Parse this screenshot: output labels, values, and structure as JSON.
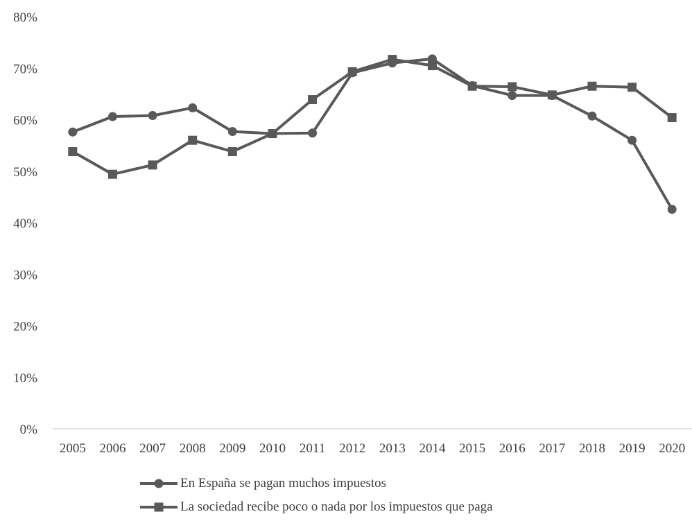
{
  "chart_data": {
    "type": "line",
    "title": "",
    "xlabel": "",
    "ylabel": "",
    "categories": [
      "2005",
      "2006",
      "2007",
      "2008",
      "2009",
      "2010",
      "2011",
      "2012",
      "2013",
      "2014",
      "2015",
      "2016",
      "2017",
      "2018",
      "2019",
      "2020"
    ],
    "y_ticks": [
      "0%",
      "10%",
      "20%",
      "30%",
      "40%",
      "50%",
      "60%",
      "70%",
      "80%"
    ],
    "ylim": [
      0,
      80
    ],
    "grid": false,
    "legend_position": "bottom",
    "series": [
      {
        "name": "En España se pagan muchos impuestos",
        "marker": "circle",
        "color": "#595959",
        "values": [
          57.6,
          60.6,
          60.8,
          62.3,
          57.7,
          57.3,
          57.4,
          69.1,
          71.0,
          71.8,
          66.6,
          64.7,
          64.7,
          60.7,
          56.0,
          42.6
        ]
      },
      {
        "name": "La sociedad recibe poco o nada por los impuestos que paga",
        "marker": "square",
        "color": "#595959",
        "values": [
          53.8,
          49.4,
          51.2,
          56.0,
          53.8,
          57.3,
          63.9,
          69.3,
          71.7,
          70.5,
          66.5,
          66.4,
          64.8,
          66.5,
          66.3,
          60.4
        ]
      }
    ]
  }
}
